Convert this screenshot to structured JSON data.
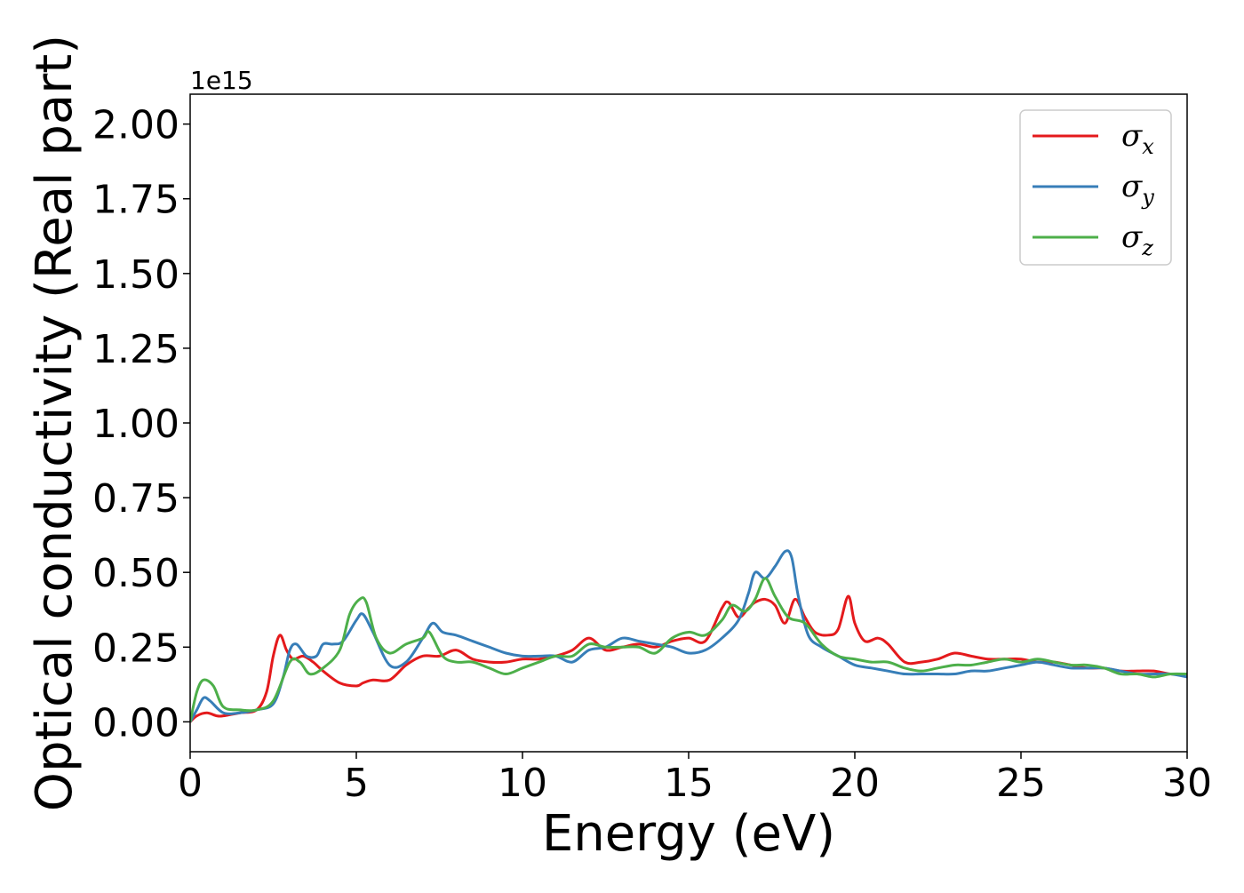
{
  "chart_data": {
    "type": "line",
    "title": "",
    "xlabel": "Energy (eV)",
    "ylabel": "Optical conductivity (Real part)",
    "y_offset_label": "1e15",
    "xlim": [
      0,
      30
    ],
    "ylim": [
      -0.1,
      2.1
    ],
    "x_ticks": [
      0,
      5,
      10,
      15,
      20,
      25,
      30
    ],
    "x_tick_labels": [
      "0",
      "5",
      "10",
      "15",
      "20",
      "25",
      "30"
    ],
    "y_ticks": [
      0,
      0.25,
      0.5,
      0.75,
      1.0,
      1.25,
      1.5,
      1.75,
      2.0
    ],
    "y_tick_labels": [
      "0.00",
      "0.25",
      "0.50",
      "0.75",
      "1.00",
      "1.25",
      "1.50",
      "1.75",
      "2.00"
    ],
    "grid": false,
    "legend_position": "top-right",
    "series": [
      {
        "name": "σx",
        "legend_base": "σ",
        "legend_sub": "x",
        "color": "#e41a1c",
        "x": [
          0,
          0.2,
          0.5,
          0.8,
          1.0,
          1.5,
          2.0,
          2.3,
          2.5,
          2.7,
          2.9,
          3.1,
          3.4,
          3.7,
          4.0,
          4.5,
          5.0,
          5.2,
          5.5,
          6.0,
          6.5,
          7.0,
          7.5,
          8.0,
          8.5,
          9.0,
          9.5,
          10.0,
          10.5,
          11.0,
          11.5,
          12.0,
          12.5,
          13.0,
          13.5,
          14.0,
          14.5,
          15.0,
          15.5,
          16.0,
          16.2,
          16.5,
          16.8,
          17.0,
          17.3,
          17.6,
          17.9,
          18.2,
          18.5,
          18.8,
          19.2,
          19.5,
          19.8,
          20.0,
          20.3,
          20.7,
          21.0,
          21.5,
          22.0,
          22.5,
          23.0,
          23.5,
          24.0,
          24.5,
          25.0,
          25.5,
          26.0,
          26.5,
          27.0,
          27.5,
          28.0,
          28.5,
          29.0,
          29.5,
          30.0
        ],
        "y": [
          0.0,
          0.02,
          0.03,
          0.02,
          0.02,
          0.03,
          0.04,
          0.1,
          0.22,
          0.29,
          0.24,
          0.21,
          0.22,
          0.2,
          0.17,
          0.13,
          0.12,
          0.13,
          0.14,
          0.14,
          0.19,
          0.22,
          0.22,
          0.24,
          0.21,
          0.2,
          0.2,
          0.21,
          0.21,
          0.22,
          0.24,
          0.28,
          0.24,
          0.25,
          0.26,
          0.25,
          0.27,
          0.28,
          0.27,
          0.38,
          0.4,
          0.35,
          0.38,
          0.4,
          0.41,
          0.39,
          0.33,
          0.41,
          0.35,
          0.3,
          0.29,
          0.31,
          0.42,
          0.33,
          0.27,
          0.28,
          0.26,
          0.2,
          0.2,
          0.21,
          0.23,
          0.22,
          0.21,
          0.21,
          0.21,
          0.2,
          0.2,
          0.19,
          0.18,
          0.18,
          0.17,
          0.17,
          0.17,
          0.16,
          0.16
        ]
      },
      {
        "name": "σy",
        "legend_base": "σ",
        "legend_sub": "y",
        "color": "#377eb8",
        "x": [
          0,
          0.2,
          0.4,
          0.6,
          1.0,
          1.5,
          2.0,
          2.5,
          2.8,
          3.0,
          3.2,
          3.5,
          3.8,
          4.0,
          4.3,
          4.6,
          5.0,
          5.2,
          5.5,
          6.0,
          6.5,
          7.0,
          7.3,
          7.6,
          8.0,
          8.5,
          9.0,
          9.5,
          10.0,
          10.5,
          11.0,
          11.5,
          12.0,
          12.5,
          13.0,
          13.5,
          14.0,
          14.5,
          15.0,
          15.5,
          16.0,
          16.5,
          16.8,
          17.0,
          17.3,
          17.6,
          17.9,
          18.1,
          18.3,
          18.6,
          19.0,
          19.5,
          20.0,
          20.5,
          21.0,
          21.5,
          22.0,
          22.5,
          23.0,
          23.5,
          24.0,
          24.5,
          25.0,
          25.5,
          26.0,
          26.5,
          27.0,
          27.5,
          28.0,
          28.5,
          29.0,
          29.5,
          30.0
        ],
        "y": [
          0.0,
          0.04,
          0.08,
          0.07,
          0.03,
          0.03,
          0.04,
          0.06,
          0.15,
          0.24,
          0.26,
          0.22,
          0.22,
          0.26,
          0.26,
          0.27,
          0.34,
          0.36,
          0.3,
          0.19,
          0.2,
          0.28,
          0.33,
          0.3,
          0.29,
          0.27,
          0.25,
          0.23,
          0.22,
          0.22,
          0.22,
          0.2,
          0.24,
          0.25,
          0.28,
          0.27,
          0.26,
          0.25,
          0.23,
          0.24,
          0.28,
          0.34,
          0.43,
          0.5,
          0.48,
          0.52,
          0.57,
          0.55,
          0.42,
          0.29,
          0.25,
          0.22,
          0.19,
          0.18,
          0.17,
          0.16,
          0.16,
          0.16,
          0.16,
          0.17,
          0.17,
          0.18,
          0.19,
          0.2,
          0.19,
          0.18,
          0.18,
          0.18,
          0.17,
          0.16,
          0.16,
          0.16,
          0.15
        ]
      },
      {
        "name": "σz",
        "legend_base": "σ",
        "legend_sub": "z",
        "color": "#4daf4a",
        "x": [
          0,
          0.2,
          0.4,
          0.7,
          1.0,
          1.5,
          2.0,
          2.5,
          3.0,
          3.3,
          3.6,
          4.0,
          4.5,
          4.8,
          5.1,
          5.3,
          5.6,
          6.0,
          6.5,
          7.0,
          7.2,
          7.6,
          8.0,
          8.5,
          9.0,
          9.5,
          10.0,
          10.5,
          11.0,
          11.5,
          12.0,
          12.5,
          13.0,
          13.5,
          14.0,
          14.5,
          15.0,
          15.5,
          16.0,
          16.3,
          16.7,
          17.0,
          17.3,
          17.6,
          18.0,
          18.5,
          19.0,
          19.5,
          20.0,
          20.5,
          21.0,
          21.5,
          22.0,
          22.5,
          23.0,
          23.5,
          24.0,
          24.5,
          25.0,
          25.5,
          26.0,
          26.5,
          27.0,
          27.5,
          28.0,
          28.5,
          29.0,
          29.5,
          30.0
        ],
        "y": [
          0.0,
          0.1,
          0.14,
          0.12,
          0.05,
          0.04,
          0.04,
          0.07,
          0.2,
          0.2,
          0.16,
          0.18,
          0.24,
          0.36,
          0.41,
          0.4,
          0.28,
          0.23,
          0.26,
          0.28,
          0.3,
          0.22,
          0.2,
          0.2,
          0.18,
          0.16,
          0.18,
          0.2,
          0.22,
          0.22,
          0.26,
          0.25,
          0.25,
          0.25,
          0.23,
          0.28,
          0.3,
          0.29,
          0.34,
          0.39,
          0.37,
          0.41,
          0.48,
          0.42,
          0.35,
          0.33,
          0.26,
          0.22,
          0.21,
          0.2,
          0.2,
          0.18,
          0.17,
          0.18,
          0.19,
          0.19,
          0.2,
          0.21,
          0.2,
          0.21,
          0.2,
          0.19,
          0.19,
          0.18,
          0.16,
          0.16,
          0.15,
          0.16,
          0.16
        ]
      }
    ]
  }
}
